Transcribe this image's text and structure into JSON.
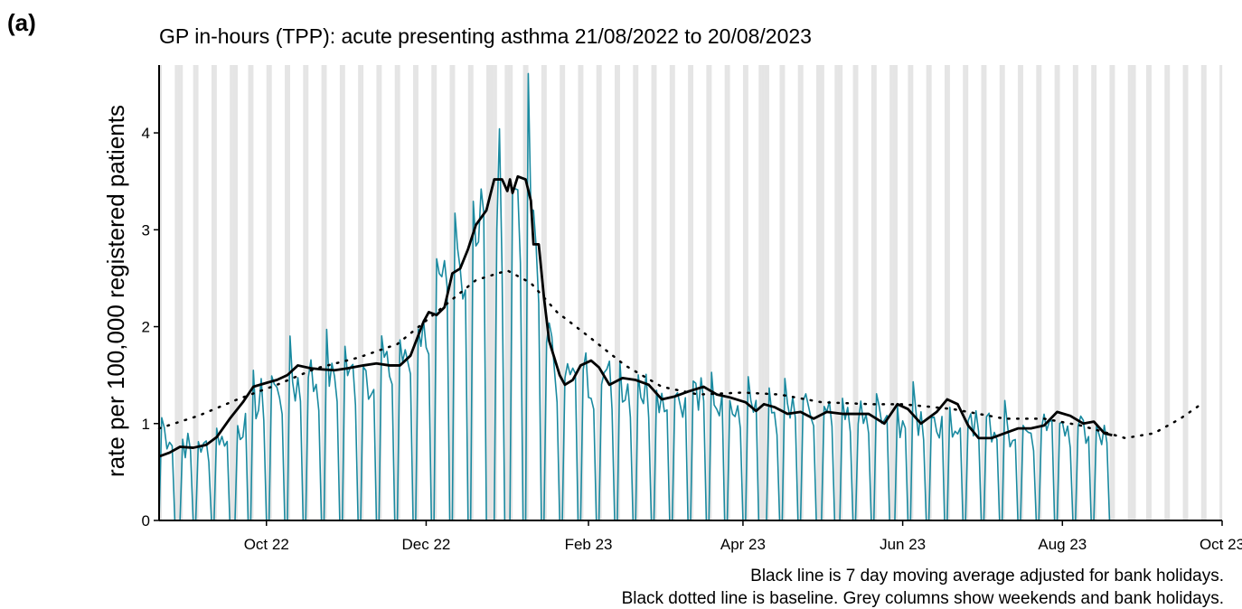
{
  "panel_label": "(a)",
  "chart_data": {
    "type": "line",
    "title": "GP in-hours (TPP): acute presenting asthma 21/08/2022 to 20/08/2023",
    "xlabel": "",
    "ylabel": "rate per 100,000 registered patients",
    "x_start": "2022-08-21",
    "x_end": "2023-08-20",
    "xlim": [
      "2022-08-21",
      "2023-10-01"
    ],
    "ylim": [
      0,
      4.7
    ],
    "x_ticks": [
      {
        "date": "2022-10-01",
        "label": "Oct 22"
      },
      {
        "date": "2022-12-01",
        "label": "Dec 22"
      },
      {
        "date": "2023-02-01",
        "label": "Feb 23"
      },
      {
        "date": "2023-04-01",
        "label": "Apr 23"
      },
      {
        "date": "2023-06-01",
        "label": "Jun 23"
      },
      {
        "date": "2023-08-01",
        "label": "Aug 23"
      },
      {
        "date": "2023-10-01",
        "label": "Oct 23"
      }
    ],
    "y_ticks": [
      0,
      1,
      2,
      3,
      4
    ],
    "grid": false,
    "shading": "Grey columns: weekends and bank holidays",
    "bank_holidays": [
      "2022-08-29",
      "2022-09-19",
      "2022-12-26",
      "2022-12-27",
      "2023-01-02",
      "2023-04-07",
      "2023-04-10",
      "2023-05-01",
      "2023-05-08",
      "2023-05-29",
      "2023-08-28"
    ],
    "daily_weekday_anchors": [
      [
        "2022-08-22",
        0.95
      ],
      [
        "2022-09-05",
        0.75
      ],
      [
        "2022-09-19",
        0.95
      ],
      [
        "2022-10-01",
        1.35
      ],
      [
        "2022-10-15",
        1.5
      ],
      [
        "2022-11-01",
        1.55
      ],
      [
        "2022-11-15",
        1.6
      ],
      [
        "2022-11-24",
        1.7
      ],
      [
        "2022-12-01",
        2.1
      ],
      [
        "2022-12-05",
        2.2
      ],
      [
        "2022-12-12",
        2.6
      ],
      [
        "2022-12-19",
        3.1
      ],
      [
        "2022-12-26",
        3.5
      ],
      [
        "2023-01-02",
        3.6
      ],
      [
        "2023-01-09",
        3.5
      ],
      [
        "2023-01-12",
        2.8
      ],
      [
        "2023-01-16",
        1.9
      ],
      [
        "2023-01-23",
        1.5
      ],
      [
        "2023-02-01",
        1.55
      ],
      [
        "2023-02-15",
        1.45
      ],
      [
        "2023-03-01",
        1.35
      ],
      [
        "2023-03-15",
        1.3
      ],
      [
        "2023-04-01",
        1.3
      ],
      [
        "2023-04-15",
        1.15
      ],
      [
        "2023-05-01",
        1.1
      ],
      [
        "2023-05-15",
        1.05
      ],
      [
        "2023-06-01",
        1.1
      ],
      [
        "2023-06-15",
        1.05
      ],
      [
        "2023-07-01",
        1.0
      ],
      [
        "2023-07-15",
        0.95
      ],
      [
        "2023-08-01",
        1.05
      ],
      [
        "2023-08-20",
        0.9
      ]
    ],
    "series": [
      {
        "name": "7 day moving average adjusted for bank holidays",
        "style": "solid",
        "color": "#000000",
        "points": [
          [
            "2022-08-21",
            0.66
          ],
          [
            "2022-08-25",
            0.7
          ],
          [
            "2022-08-29",
            0.76
          ],
          [
            "2022-09-03",
            0.75
          ],
          [
            "2022-09-08",
            0.78
          ],
          [
            "2022-09-12",
            0.86
          ],
          [
            "2022-09-17",
            1.05
          ],
          [
            "2022-09-22",
            1.22
          ],
          [
            "2022-09-26",
            1.38
          ],
          [
            "2022-10-01",
            1.42
          ],
          [
            "2022-10-05",
            1.45
          ],
          [
            "2022-10-09",
            1.5
          ],
          [
            "2022-10-13",
            1.6
          ],
          [
            "2022-10-18",
            1.57
          ],
          [
            "2022-10-22",
            1.56
          ],
          [
            "2022-10-27",
            1.55
          ],
          [
            "2022-11-01",
            1.57
          ],
          [
            "2022-11-07",
            1.6
          ],
          [
            "2022-11-12",
            1.62
          ],
          [
            "2022-11-17",
            1.6
          ],
          [
            "2022-11-21",
            1.6
          ],
          [
            "2022-11-25",
            1.7
          ],
          [
            "2022-11-30",
            2.05
          ],
          [
            "2022-12-02",
            2.15
          ],
          [
            "2022-12-05",
            2.12
          ],
          [
            "2022-12-08",
            2.2
          ],
          [
            "2022-12-11",
            2.55
          ],
          [
            "2022-12-14",
            2.6
          ],
          [
            "2022-12-17",
            2.8
          ],
          [
            "2022-12-20",
            3.05
          ],
          [
            "2022-12-24",
            3.2
          ],
          [
            "2022-12-27",
            3.52
          ],
          [
            "2022-12-30",
            3.52
          ],
          [
            "2023-01-01",
            3.4
          ],
          [
            "2023-01-02",
            3.52
          ],
          [
            "2023-01-03",
            3.38
          ],
          [
            "2023-01-05",
            3.55
          ],
          [
            "2023-01-08",
            3.52
          ],
          [
            "2023-01-10",
            3.3
          ],
          [
            "2023-01-11",
            2.85
          ],
          [
            "2023-01-13",
            2.85
          ],
          [
            "2023-01-15",
            2.3
          ],
          [
            "2023-01-17",
            1.85
          ],
          [
            "2023-01-21",
            1.5
          ],
          [
            "2023-01-23",
            1.4
          ],
          [
            "2023-01-26",
            1.45
          ],
          [
            "2023-01-29",
            1.6
          ],
          [
            "2023-02-02",
            1.65
          ],
          [
            "2023-02-05",
            1.58
          ],
          [
            "2023-02-09",
            1.4
          ],
          [
            "2023-02-14",
            1.47
          ],
          [
            "2023-02-19",
            1.45
          ],
          [
            "2023-02-24",
            1.4
          ],
          [
            "2023-03-01",
            1.25
          ],
          [
            "2023-03-06",
            1.28
          ],
          [
            "2023-03-11",
            1.33
          ],
          [
            "2023-03-17",
            1.38
          ],
          [
            "2023-03-22",
            1.3
          ],
          [
            "2023-03-27",
            1.27
          ],
          [
            "2023-04-02",
            1.22
          ],
          [
            "2023-04-06",
            1.13
          ],
          [
            "2023-04-09",
            1.2
          ],
          [
            "2023-04-13",
            1.17
          ],
          [
            "2023-04-18",
            1.1
          ],
          [
            "2023-04-23",
            1.12
          ],
          [
            "2023-04-28",
            1.05
          ],
          [
            "2023-05-03",
            1.12
          ],
          [
            "2023-05-09",
            1.1
          ],
          [
            "2023-05-14",
            1.1
          ],
          [
            "2023-05-19",
            1.1
          ],
          [
            "2023-05-25",
            1.0
          ],
          [
            "2023-05-30",
            1.2
          ],
          [
            "2023-06-03",
            1.15
          ],
          [
            "2023-06-08",
            1.0
          ],
          [
            "2023-06-14",
            1.12
          ],
          [
            "2023-06-18",
            1.25
          ],
          [
            "2023-06-22",
            1.2
          ],
          [
            "2023-06-26",
            0.98
          ],
          [
            "2023-06-30",
            0.85
          ],
          [
            "2023-07-05",
            0.85
          ],
          [
            "2023-07-10",
            0.9
          ],
          [
            "2023-07-15",
            0.95
          ],
          [
            "2023-07-20",
            0.95
          ],
          [
            "2023-07-25",
            0.98
          ],
          [
            "2023-07-30",
            1.12
          ],
          [
            "2023-08-04",
            1.08
          ],
          [
            "2023-08-09",
            1.0
          ],
          [
            "2023-08-13",
            1.02
          ],
          [
            "2023-08-17",
            0.9
          ],
          [
            "2023-08-20",
            0.88
          ]
        ]
      },
      {
        "name": "Baseline",
        "style": "dotted",
        "color": "#000000",
        "points": [
          [
            "2022-08-21",
            0.95
          ],
          [
            "2022-09-05",
            1.08
          ],
          [
            "2022-09-20",
            1.25
          ],
          [
            "2022-10-05",
            1.4
          ],
          [
            "2022-10-20",
            1.57
          ],
          [
            "2022-11-05",
            1.68
          ],
          [
            "2022-11-20",
            1.82
          ],
          [
            "2022-12-05",
            2.15
          ],
          [
            "2022-12-20",
            2.48
          ],
          [
            "2023-01-01",
            2.58
          ],
          [
            "2023-01-10",
            2.45
          ],
          [
            "2023-01-20",
            2.15
          ],
          [
            "2023-02-01",
            1.9
          ],
          [
            "2023-02-15",
            1.6
          ],
          [
            "2023-03-01",
            1.38
          ],
          [
            "2023-03-15",
            1.3
          ],
          [
            "2023-04-01",
            1.32
          ],
          [
            "2023-04-15",
            1.3
          ],
          [
            "2023-05-01",
            1.22
          ],
          [
            "2023-05-20",
            1.2
          ],
          [
            "2023-06-01",
            1.2
          ],
          [
            "2023-06-20",
            1.15
          ],
          [
            "2023-07-10",
            1.05
          ],
          [
            "2023-07-25",
            1.05
          ],
          [
            "2023-08-08",
            0.98
          ],
          [
            "2023-08-25",
            0.85
          ],
          [
            "2023-09-05",
            0.9
          ],
          [
            "2023-09-15",
            1.05
          ],
          [
            "2023-09-23",
            1.2
          ]
        ]
      }
    ],
    "footnotes": [
      "Black line is 7 day moving average adjusted for bank holidays.",
      "Black dotted line is baseline. Grey columns show weekends and bank holidays."
    ]
  }
}
